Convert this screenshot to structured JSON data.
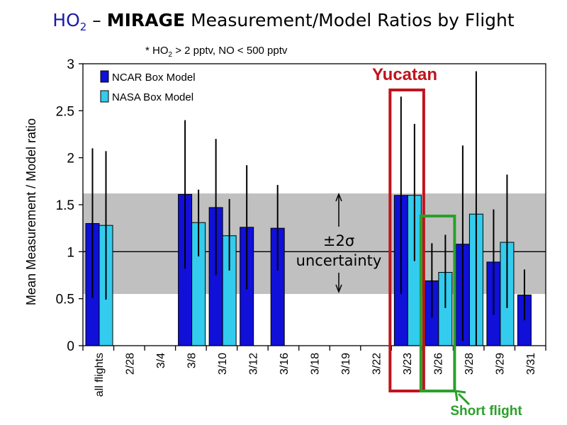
{
  "title": {
    "species": "HO",
    "species_sub": "2",
    "dash": " – ",
    "campaign": "MIRAGE",
    "rest": " Measurement/Model Ratios by Flight"
  },
  "subtitle": {
    "prefix": "* HO",
    "sub": "2",
    "rest": " > 2 pptv, NO < 500 pptv"
  },
  "colors": {
    "ncar": "#1010d8",
    "nasa": "#33ccee",
    "uncertainty_band": "#c0c0c0",
    "yucatan_box": "#c0141c",
    "short_flight_box": "#2aa02a"
  },
  "annotations": {
    "uncertainty_line1": "±2σ",
    "uncertainty_line2": "uncertainty",
    "yucatan": "Yucatan",
    "short_flight": "Short flight"
  },
  "chart_data": {
    "type": "bar",
    "title": "HO2 – MIRAGE Measurement/Model Ratios by Flight",
    "subtitle": "* HO2 > 2 pptv, NO < 500 pptv",
    "xlabel": "",
    "ylabel": "Mean Measurement / Model ratio",
    "ylim": [
      0,
      3
    ],
    "yticks": [
      "0",
      "0.5",
      "1",
      "1.5",
      "2",
      "2.5",
      "3"
    ],
    "categories": [
      "all flights",
      "2/28",
      "3/4",
      "3/8",
      "3/10",
      "3/12",
      "3/16",
      "3/18",
      "3/19",
      "3/22",
      "3/23",
      "3/26",
      "3/28",
      "3/29",
      "3/31"
    ],
    "series": [
      {
        "name": "NCAR Box Model",
        "values": [
          1.3,
          null,
          null,
          1.61,
          1.47,
          1.26,
          1.25,
          null,
          null,
          null,
          1.6,
          0.69,
          1.08,
          0.89,
          0.54
        ],
        "error_low": [
          0.51,
          null,
          null,
          0.82,
          0.75,
          0.6,
          0.8,
          null,
          null,
          null,
          0.55,
          0.3,
          0.05,
          0.33,
          0.27
        ],
        "error_high": [
          2.1,
          null,
          null,
          2.4,
          2.2,
          1.92,
          1.71,
          null,
          null,
          null,
          2.65,
          1.09,
          2.13,
          1.45,
          0.81
        ]
      },
      {
        "name": "NASA Box Model",
        "values": [
          1.28,
          null,
          null,
          1.31,
          1.17,
          null,
          null,
          null,
          null,
          null,
          1.6,
          0.78,
          1.4,
          1.1,
          null
        ],
        "error_low": [
          0.49,
          null,
          null,
          0.95,
          0.8,
          null,
          null,
          null,
          null,
          null,
          0.9,
          0.4,
          0.0,
          0.4,
          null
        ],
        "error_high": [
          2.07,
          null,
          null,
          1.66,
          1.56,
          null,
          null,
          null,
          null,
          null,
          2.36,
          1.18,
          2.92,
          1.82,
          null
        ]
      }
    ],
    "reference_line": 1,
    "uncertainty_band": [
      0.55,
      1.62
    ],
    "legend": "top-left",
    "grid": false
  }
}
